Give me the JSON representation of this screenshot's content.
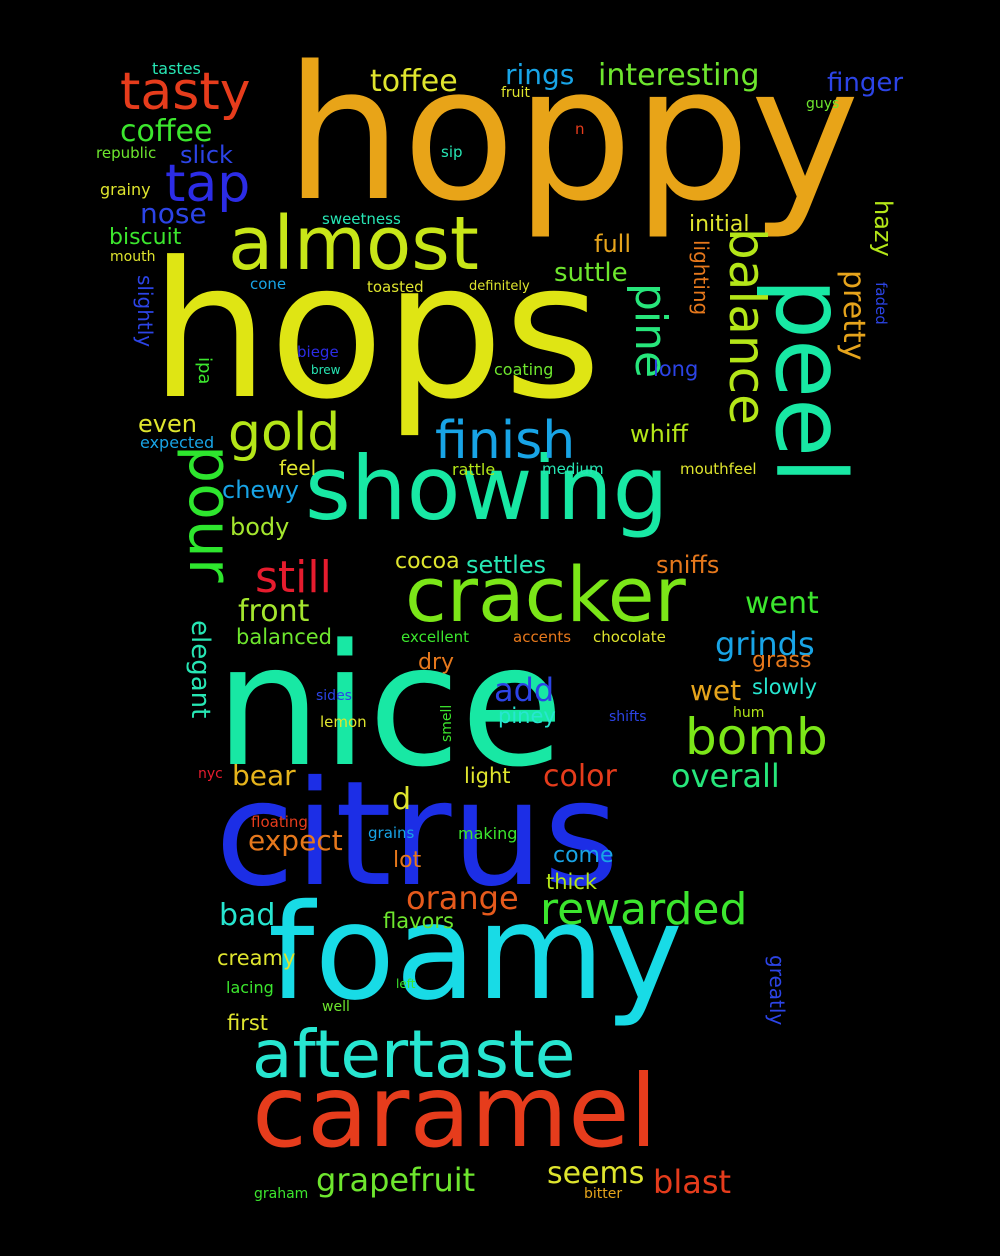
{
  "words": [
    {
      "text": "hoppy",
      "color": "#e8a418"
    },
    {
      "text": "hops",
      "color": "#dfe514"
    },
    {
      "text": "nice",
      "color": "#18e8a4"
    },
    {
      "text": "citrus",
      "color": "#1c2ee6"
    },
    {
      "text": "foamy",
      "color": "#18dbe6"
    },
    {
      "text": "caramel",
      "color": "#e63c1c"
    },
    {
      "text": "showing",
      "color": "#18e8a4"
    },
    {
      "text": "cracker",
      "color": "#7be618"
    },
    {
      "text": "peel",
      "color": "#18e8a4"
    },
    {
      "text": "almost",
      "color": "#c8e618"
    },
    {
      "text": "aftertaste",
      "color": "#27e6d0"
    },
    {
      "text": "tasty",
      "color": "#e63c1c"
    },
    {
      "text": "finish",
      "color": "#18a4e6"
    },
    {
      "text": "balance",
      "color": "#b4e618"
    },
    {
      "text": "pine",
      "color": "#27e67b"
    },
    {
      "text": "pour",
      "color": "#2ee62e"
    },
    {
      "text": "gold",
      "color": "#b4e618"
    },
    {
      "text": "tap",
      "color": "#2c2ce6"
    },
    {
      "text": "still",
      "color": "#e61c2e"
    },
    {
      "text": "rewarded",
      "color": "#3ce62e"
    },
    {
      "text": "bomb",
      "color": "#7be618"
    },
    {
      "text": "grapefruit",
      "color": "#6ee62e"
    },
    {
      "text": "toffee",
      "color": "#dfe52e"
    },
    {
      "text": "interesting",
      "color": "#6ee62e"
    },
    {
      "text": "coffee",
      "color": "#3ce62e"
    },
    {
      "text": "rings",
      "color": "#18a4e6"
    },
    {
      "text": "finger",
      "color": "#2c44e6"
    },
    {
      "text": "nose",
      "color": "#2c44e6"
    },
    {
      "text": "front",
      "color": "#a4e62e"
    },
    {
      "text": "orange",
      "color": "#e65a1c"
    },
    {
      "text": "overall",
      "color": "#27e67b"
    },
    {
      "text": "color",
      "color": "#e63c1c"
    },
    {
      "text": "grinds",
      "color": "#18a4e6"
    },
    {
      "text": "went",
      "color": "#3ce62e"
    },
    {
      "text": "blast",
      "color": "#e63c1c"
    },
    {
      "text": "seems",
      "color": "#dfe52e"
    },
    {
      "text": "pretty",
      "color": "#e6a41c"
    },
    {
      "text": "hazy",
      "color": "#b4e618"
    },
    {
      "text": "elegant",
      "color": "#27e6b4"
    },
    {
      "text": "wet",
      "color": "#e6a41c"
    },
    {
      "text": "add",
      "color": "#2c44e6"
    },
    {
      "text": "expect",
      "color": "#e6781c"
    },
    {
      "text": "bear",
      "color": "#e6b41c"
    },
    {
      "text": "bad",
      "color": "#27e6d0"
    },
    {
      "text": "whiff",
      "color": "#b4e618"
    },
    {
      "text": "settles",
      "color": "#27e6b4"
    },
    {
      "text": "sniffs",
      "color": "#e6781c"
    },
    {
      "text": "suttle",
      "color": "#6ee62e"
    },
    {
      "text": "full",
      "color": "#e6a41c"
    },
    {
      "text": "initial",
      "color": "#dfe52e"
    },
    {
      "text": "biscuit",
      "color": "#3ce62e"
    },
    {
      "text": "slick",
      "color": "#2c44e6"
    },
    {
      "text": "chewy",
      "color": "#18a4e6"
    },
    {
      "text": "body",
      "color": "#a4e62e"
    },
    {
      "text": "even",
      "color": "#dfe52e"
    },
    {
      "text": "cocoa",
      "color": "#dfe52e"
    },
    {
      "text": "balanced",
      "color": "#6ee62e"
    },
    {
      "text": "dry",
      "color": "#e6781c"
    },
    {
      "text": "grass",
      "color": "#e6781c"
    },
    {
      "text": "slowly",
      "color": "#27e6d0"
    },
    {
      "text": "piney",
      "color": "#27e6d0"
    },
    {
      "text": "light",
      "color": "#dfe52e"
    },
    {
      "text": "d",
      "color": "#dfe52e"
    },
    {
      "text": "lot",
      "color": "#e6781c"
    },
    {
      "text": "come",
      "color": "#18a4e6"
    },
    {
      "text": "thick",
      "color": "#b4e618"
    },
    {
      "text": "flavors",
      "color": "#6ee62e"
    },
    {
      "text": "creamy",
      "color": "#dfe52e"
    },
    {
      "text": "first",
      "color": "#dfe52e"
    },
    {
      "text": "feel",
      "color": "#dfe52e"
    },
    {
      "text": "long",
      "color": "#2c44e6"
    },
    {
      "text": "lighting",
      "color": "#e6781c"
    },
    {
      "text": "greatly",
      "color": "#2c44e6"
    },
    {
      "text": "slightly",
      "color": "#2c44e6"
    },
    {
      "text": "ipa",
      "color": "#3ce62e"
    },
    {
      "text": "tastes",
      "color": "#27e6b4"
    },
    {
      "text": "fruit",
      "color": "#dfe52e"
    },
    {
      "text": "guys",
      "color": "#6ee62e"
    },
    {
      "text": "republic",
      "color": "#6ee62e"
    },
    {
      "text": "grainy",
      "color": "#dfe52e"
    },
    {
      "text": "mouth",
      "color": "#dfe52e"
    },
    {
      "text": "sip",
      "color": "#27e6b4"
    },
    {
      "text": "n",
      "color": "#e63c1c"
    },
    {
      "text": "sweetness",
      "color": "#27e6b4"
    },
    {
      "text": "cone",
      "color": "#18a4e6"
    },
    {
      "text": "toasted",
      "color": "#dfe52e"
    },
    {
      "text": "definitely",
      "color": "#dfe52e"
    },
    {
      "text": "faded",
      "color": "#2c44e6"
    },
    {
      "text": "biege",
      "color": "#2c2ce6"
    },
    {
      "text": "brew",
      "color": "#27e6b4"
    },
    {
      "text": "coating",
      "color": "#6ee62e"
    },
    {
      "text": "expected",
      "color": "#18a4e6"
    },
    {
      "text": "rattle",
      "color": "#b4e618"
    },
    {
      "text": "medium",
      "color": "#27e6b4"
    },
    {
      "text": "mouthfeel",
      "color": "#dfe52e"
    },
    {
      "text": "excellent",
      "color": "#3ce62e"
    },
    {
      "text": "accents",
      "color": "#e6781c"
    },
    {
      "text": "chocolate",
      "color": "#dfe52e"
    },
    {
      "text": "sides",
      "color": "#2c44e6"
    },
    {
      "text": "lemon",
      "color": "#dfe52e"
    },
    {
      "text": "smell",
      "color": "#3ce62e"
    },
    {
      "text": "shifts",
      "color": "#2c44e6"
    },
    {
      "text": "hum",
      "color": "#b4e618"
    },
    {
      "text": "nyc",
      "color": "#e61c2e"
    },
    {
      "text": "floating",
      "color": "#e63c1c"
    },
    {
      "text": "grains",
      "color": "#18a4e6"
    },
    {
      "text": "making",
      "color": "#3ce62e"
    },
    {
      "text": "lacing",
      "color": "#3ce62e"
    },
    {
      "text": "left",
      "color": "#3ce62e"
    },
    {
      "text": "well",
      "color": "#6ee62e"
    },
    {
      "text": "graham",
      "color": "#3ce62e"
    },
    {
      "text": "bitter",
      "color": "#e6a41c"
    }
  ]
}
